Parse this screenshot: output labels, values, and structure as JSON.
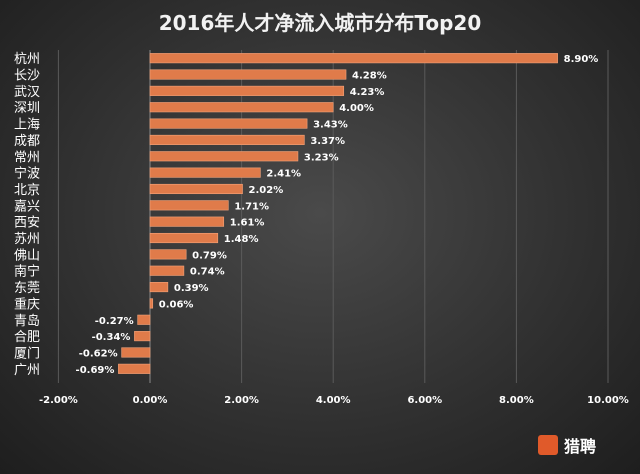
{
  "chart_data": {
    "type": "bar",
    "orientation": "horizontal",
    "title": "2016年人才净流入城市分布Top20",
    "categories": [
      "杭州",
      "长沙",
      "武汉",
      "深圳",
      "上海",
      "成都",
      "常州",
      "宁波",
      "北京",
      "嘉兴",
      "西安",
      "苏州",
      "佛山",
      "南宁",
      "东莞",
      "重庆",
      "青岛",
      "合肥",
      "厦门",
      "广州"
    ],
    "values": [
      8.9,
      4.28,
      4.23,
      4.0,
      3.43,
      3.37,
      3.23,
      2.41,
      2.02,
      1.71,
      1.61,
      1.48,
      0.79,
      0.74,
      0.39,
      0.06,
      -0.27,
      -0.34,
      -0.62,
      -0.69
    ],
    "value_labels": [
      "8.90%",
      "4.28%",
      "4.23%",
      "4.00%",
      "3.43%",
      "3.37%",
      "3.23%",
      "2.41%",
      "2.02%",
      "1.71%",
      "1.61%",
      "1.48%",
      "0.79%",
      "0.74%",
      "0.39%",
      "0.06%",
      "-0.27%",
      "-0.34%",
      "-0.62%",
      "-0.69%"
    ],
    "xlim": [
      -2,
      10
    ],
    "xticks": [
      -2,
      0,
      2,
      4,
      6,
      8,
      10
    ],
    "xtick_labels": [
      "-2.00%",
      "0.00%",
      "2.00%",
      "4.00%",
      "6.00%",
      "8.00%",
      "10.00%"
    ],
    "grid": true,
    "bar_color": "#e07b4a"
  },
  "watermark": {
    "text": "猎聘"
  }
}
